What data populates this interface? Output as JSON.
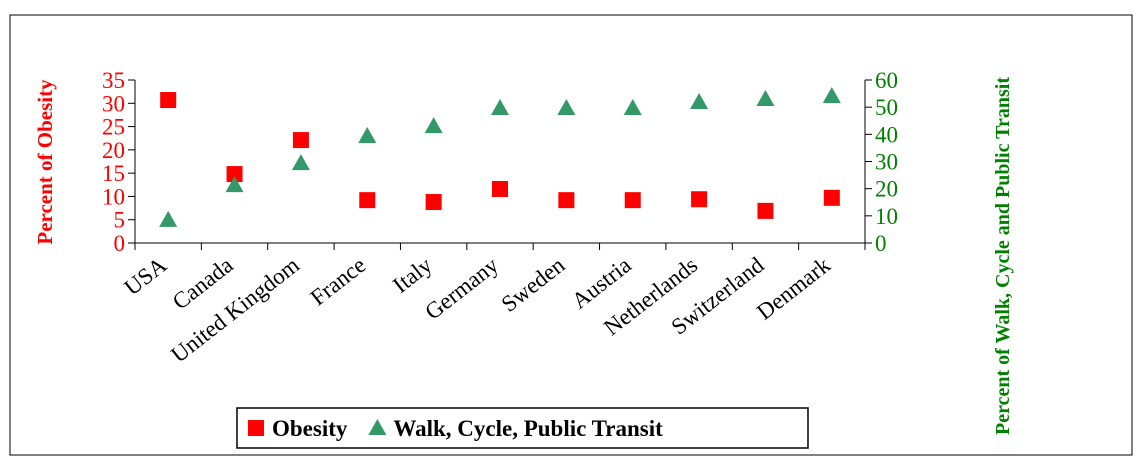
{
  "chart_data": {
    "type": "scatter",
    "y_label": "Percent of Obesity",
    "y2_label": "Percent of Walk, Cycle and Public Transit",
    "categories": [
      "USA",
      "Canada",
      "United Kingdom",
      "France",
      "Italy",
      "Germany",
      "Sweden",
      "Austria",
      "Netherlands",
      "Switzerland",
      "Denmark"
    ],
    "series": [
      {
        "name": "Obesity",
        "color": "#ff0000",
        "marker": "square",
        "values": [
          30.7,
          14.8,
          22.1,
          9.2,
          8.8,
          11.6,
          9.2,
          9.2,
          9.4,
          6.9,
          9.7
        ]
      },
      {
        "name": "Walk, Cycle, Public Transit",
        "color": "#339966",
        "marker": "triangle",
        "axis": "y2",
        "values": [
          8.5,
          21.3,
          29.4,
          39.4,
          43,
          49.7,
          49.7,
          49.7,
          51.9,
          53,
          54.1
        ]
      }
    ],
    "ylim": [
      0,
      35
    ],
    "yticks": [
      0,
      5,
      10,
      15,
      20,
      25,
      30,
      35
    ],
    "y_color": "#ff0000",
    "y2lim": [
      0,
      60
    ],
    "y2ticks": [
      0,
      10,
      20,
      30,
      40,
      50,
      60
    ],
    "y2_color": "#008000",
    "legend": "bottom"
  }
}
